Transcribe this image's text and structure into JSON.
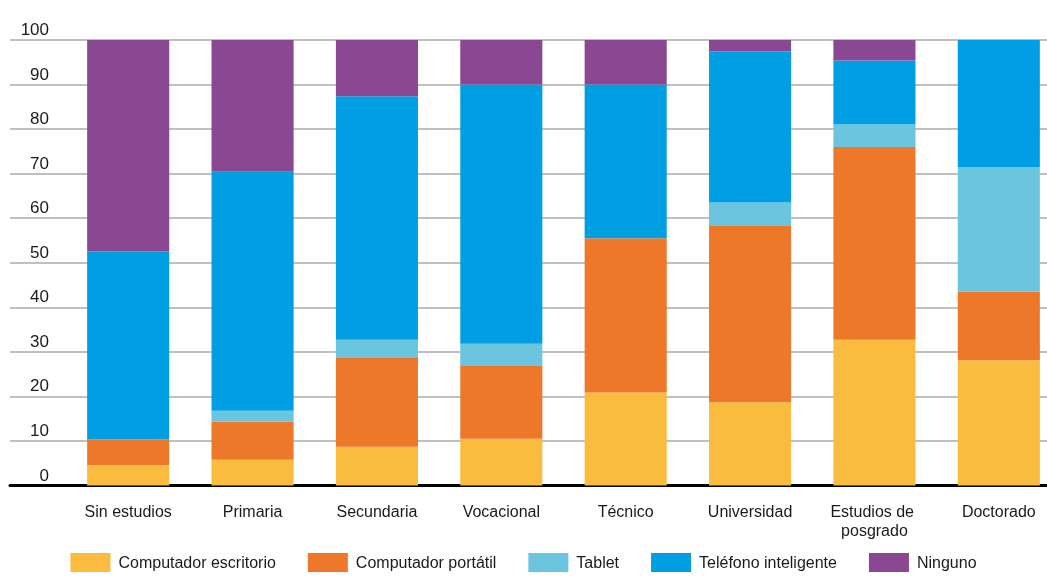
{
  "chart_data": {
    "type": "bar",
    "stacked": true,
    "categories": [
      "Sin estudios",
      "Primaria",
      "Secundaria",
      "Vocacional",
      "Técnico",
      "Universidad",
      "Estudios de posgrado",
      "Doctorado"
    ],
    "series": [
      {
        "name": "Computador escritorio",
        "color": "#f9bc3f",
        "values": [
          4.6,
          5.8,
          8.7,
          10.5,
          20.9,
          18.7,
          32.7,
          28.1
        ]
      },
      {
        "name": "Computador portátil",
        "color": "#ee7829",
        "values": [
          5.7,
          8.5,
          20.1,
          16.3,
          34.6,
          39.7,
          43.3,
          15.4
        ]
      },
      {
        "name": "Tablet",
        "color": "#6cc5de",
        "values": [
          0,
          2.5,
          3.9,
          5.0,
          0,
          5.1,
          5.1,
          28.0
        ]
      },
      {
        "name": "Teléfono inteligente",
        "color": "#009fe3",
        "values": [
          42.2,
          53.6,
          54.7,
          58.2,
          34.5,
          33.9,
          14.3,
          28.5
        ]
      },
      {
        "name": "Ninguno",
        "color": "#8b4892",
        "values": [
          47.5,
          29.6,
          12.6,
          10.0,
          10.0,
          2.6,
          4.6,
          0
        ]
      }
    ],
    "ylim": [
      0,
      100
    ],
    "yticks": [
      0,
      10,
      20,
      30,
      40,
      50,
      60,
      70,
      80,
      90,
      100
    ],
    "grid": "y",
    "legend": "bottom"
  }
}
